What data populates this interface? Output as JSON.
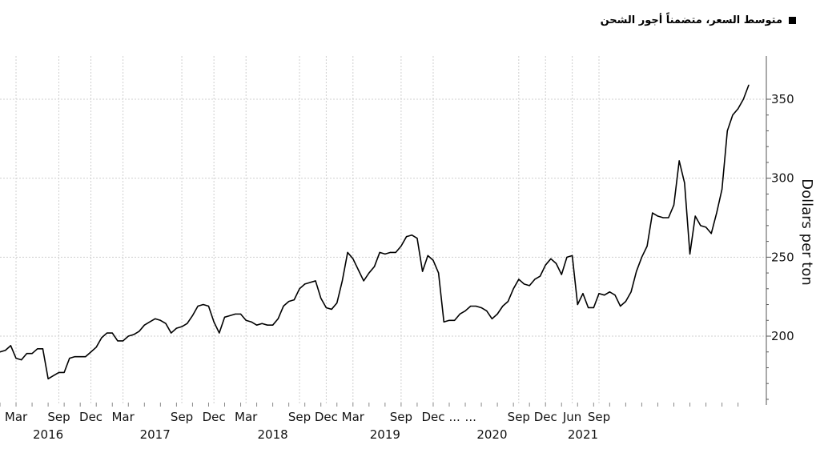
{
  "legend": {
    "label": "متوسط السعر، متضمناً أجور الشحن",
    "swatch_color": "#000000"
  },
  "chart_data": {
    "type": "line",
    "title": "",
    "ylabel": "Dollars per ton",
    "xlabel": "",
    "ylim": [
      150,
      360
    ],
    "yticks": [
      200,
      250,
      300,
      350
    ],
    "grid": true,
    "legend_position": "top-right",
    "month_labels": [
      {
        "label": "Mar",
        "i": 3
      },
      {
        "label": "Sep",
        "i": 11
      },
      {
        "label": "Dec",
        "i": 17
      },
      {
        "label": "Mar",
        "i": 23
      },
      {
        "label": "Sep",
        "i": 34
      },
      {
        "label": "Dec",
        "i": 40
      },
      {
        "label": "Mar",
        "i": 46
      },
      {
        "label": "Sep",
        "i": 56
      },
      {
        "label": "Dec",
        "i": 61
      },
      {
        "label": "Mar",
        "i": 66
      },
      {
        "label": "Sep",
        "i": 75
      },
      {
        "label": "Dec",
        "i": 81
      },
      {
        "label": "...",
        "i": 85
      },
      {
        "label": "...",
        "i": 88
      },
      {
        "label": "Sep",
        "i": 97
      },
      {
        "label": "Dec",
        "i": 102
      },
      {
        "label": "Jun",
        "i": 107
      },
      {
        "label": "Sep",
        "i": 112
      }
    ],
    "year_labels": [
      {
        "label": "2016",
        "i": 9
      },
      {
        "label": "2017",
        "i": 29
      },
      {
        "label": "2018",
        "i": 51
      },
      {
        "label": "2019",
        "i": 72
      },
      {
        "label": "2020",
        "i": 92
      },
      {
        "label": "2021",
        "i": 109
      }
    ],
    "series": [
      {
        "values": [
          190,
          191,
          194,
          186,
          185,
          189,
          189,
          192,
          192,
          173,
          175,
          177,
          177,
          186,
          187,
          187,
          187,
          190,
          193,
          199,
          202,
          202,
          197,
          197,
          200,
          201,
          203,
          207,
          209,
          211,
          210,
          208,
          202,
          205,
          206,
          208,
          213,
          219,
          220,
          219,
          209,
          202,
          212,
          213,
          214,
          214,
          210,
          209,
          207,
          208,
          207,
          207,
          211,
          219,
          222,
          223,
          230,
          233,
          234,
          235,
          224,
          218,
          217,
          221,
          235,
          253,
          249,
          242,
          235,
          240,
          244,
          253,
          252,
          253,
          253,
          257,
          263,
          264,
          262,
          241,
          251,
          248,
          240,
          209,
          210,
          210,
          214,
          216,
          219,
          219,
          218,
          216,
          211,
          214,
          219,
          222,
          230,
          236,
          233,
          232,
          236,
          238,
          245,
          249,
          246,
          239,
          250,
          251,
          220,
          227,
          218,
          218,
          227,
          226,
          228,
          226,
          219,
          222,
          228,
          241,
          250,
          257,
          278,
          276,
          275,
          275,
          283,
          311,
          297,
          252,
          276,
          270,
          269,
          265,
          278,
          293,
          330,
          340,
          344,
          350,
          359
        ]
      }
    ]
  }
}
